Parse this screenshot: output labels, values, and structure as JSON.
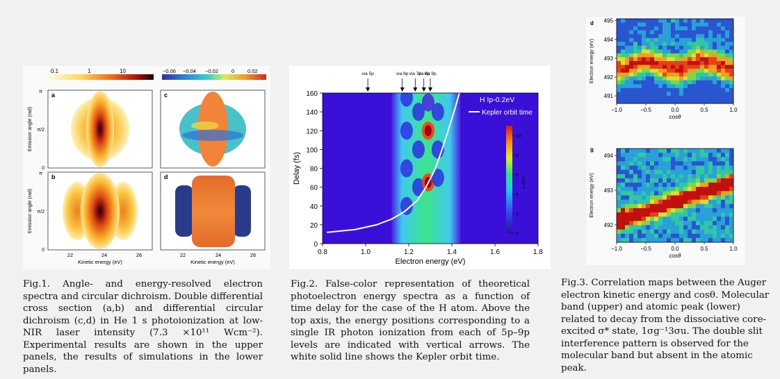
{
  "fig1": {
    "colorbar_left_ticks": [
      "0.1",
      "1",
      "10"
    ],
    "colorbar_right_ticks": [
      "−0.06",
      "−0.04",
      "−0.02",
      "0",
      "0.02"
    ],
    "panels": [
      {
        "label": "a",
        "ylabel": "Emission angle (rad)"
      },
      {
        "label": "c",
        "ylabel": ""
      },
      {
        "label": "b",
        "ylabel": "Emission angle (rad)"
      },
      {
        "label": "d",
        "ylabel": ""
      }
    ],
    "y_ticks": [
      "π",
      "π/2",
      "0"
    ],
    "x_ticks": [
      "22",
      "24",
      "26"
    ],
    "xlabel": "Kinetic energy (eV)",
    "caption": "Fig.1. Angle- and energy-resolved electron spectra and circular dichroism. Double differential cross section (a,b) and differential circular dichroism (c,d) in He 1 s photoionization at low-NIR laser intensity (7.3 ×10¹¹ Wcm⁻²). Experimental results are shown in the upper panels, the results of simulations in the lower panels."
  },
  "fig2": {
    "top_labels": [
      "via 5p",
      "via 6p",
      "via 7p",
      "via 8p",
      "via 9p"
    ],
    "legend_title": "H  Ip-0.2eV",
    "legend_line": "Kepler orbit time",
    "colorbar_unit": "×10⁻⁶",
    "caption": "Fig.2. False-color representation of theoretical photoelectron energy spectra as a function of time delay for the case of the H atom. Above the top axis, the energy positions corresponding to a single IR photon ionization from each of 5p–9p levels are indicated with vertical arrows. The white solid line shows the Kepler orbit time."
  },
  "fig3": {
    "caption": "Fig.3. Correlation maps between the Auger electron kinetic energy and cosθ. Molecular band (upper) and atomic peak (lower) related to decay from the dissociative core-excited σ* state, 1σg⁻¹3σu. The double slit interference pattern is observed for the molecular band but absent in the atomic peak."
  },
  "chart_data": [
    {
      "type": "heatmap",
      "title": "",
      "xlabel": "Electron energy (eV)",
      "ylabel": "Delay (fs)",
      "xlim": [
        0.8,
        1.8
      ],
      "ylim": [
        0,
        160
      ],
      "x_ticks": [
        "0.8",
        "1.0",
        "1.2",
        "1.4",
        "1.6",
        "1.8"
      ],
      "y_ticks": [
        "0",
        "20",
        "40",
        "60",
        "80",
        "100",
        "120",
        "140",
        "160"
      ],
      "colorbar": {
        "range": [
          0,
          11
        ],
        "ticks": [
          "0",
          "2",
          "4",
          "6",
          "8",
          "10"
        ]
      },
      "arrow_energies": [
        1.01,
        1.17,
        1.23,
        1.27,
        1.3
      ],
      "kepler_curve": {
        "x": [
          0.82,
          0.95,
          1.05,
          1.12,
          1.18,
          1.24,
          1.28,
          1.32,
          1.35,
          1.38,
          1.41,
          1.44
        ],
        "y": [
          12,
          15,
          20,
          26,
          34,
          46,
          60,
          78,
          97,
          118,
          140,
          164
        ]
      }
    },
    {
      "type": "heatmap",
      "panel": "d",
      "xlabel": "cosθ",
      "ylabel": "Electron energy (eV)",
      "xlim": [
        -1.0,
        1.0
      ],
      "ylim": [
        490.6,
        495.1
      ],
      "x_ticks": [
        "−1.0",
        "−0.5",
        "0.0",
        "0.5",
        "1.0"
      ],
      "y_ticks": [
        "491",
        "492",
        "493",
        "494",
        "495"
      ]
    },
    {
      "type": "heatmap",
      "panel": "g",
      "xlabel": "cosθ",
      "ylabel": "Electron energy (eV)",
      "xlim": [
        -1.0,
        1.0
      ],
      "ylim": [
        491.5,
        494.2
      ],
      "x_ticks": [
        "−1.0",
        "−0.5",
        "0.0",
        "0.5",
        "1.0"
      ],
      "y_ticks": [
        "492",
        "493",
        "494"
      ]
    }
  ]
}
